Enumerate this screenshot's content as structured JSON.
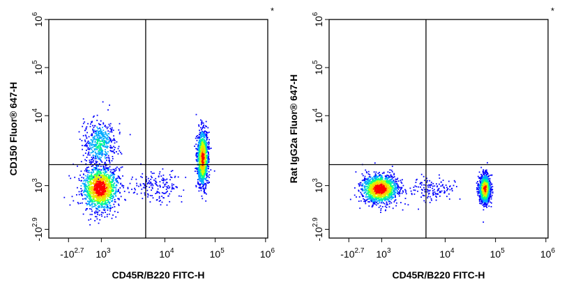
{
  "chart_data": [
    {
      "type": "scatter",
      "subtype": "flow-cytometry-density-plot",
      "xlabel": "CD45R/B220 FITC-H",
      "ylabel": "CD150 Fluor® 647-H",
      "marker": "*",
      "x_scale": "biexponential",
      "y_scale": "biexponential",
      "x_ticks": [
        {
          "base": "-10",
          "exp": "2.7",
          "value": -501
        },
        {
          "base": "10",
          "exp": "3",
          "value": 1000
        },
        {
          "base": "10",
          "exp": "4",
          "value": 10000
        },
        {
          "base": "10",
          "exp": "5",
          "value": 100000
        },
        {
          "base": "10",
          "exp": "6",
          "value": 1000000
        }
      ],
      "y_ticks": [
        {
          "base": "-10",
          "exp": "2.9",
          "value": -794
        },
        {
          "base": "10",
          "exp": "3",
          "value": 1000
        },
        {
          "base": "10",
          "exp": "4",
          "value": 10000
        },
        {
          "base": "10",
          "exp": "5",
          "value": 100000
        },
        {
          "base": "10",
          "exp": "6",
          "value": 1000000
        }
      ],
      "quadrant_gate": {
        "x": 5000,
        "y": 2000
      },
      "populations": [
        {
          "x_center": 600,
          "y_center": 650,
          "x_spread": 0.45,
          "y_spread": 0.55,
          "relative_density": 1.0
        },
        {
          "x_center": 600,
          "y_center": 4000,
          "x_spread": 0.4,
          "y_spread": 0.6,
          "relative_density": 0.35
        },
        {
          "x_center": 55000,
          "y_center": 2500,
          "x_spread": 0.14,
          "y_spread": 0.7,
          "relative_density": 0.9
        },
        {
          "x_center": 7000,
          "y_center": 700,
          "x_spread": 0.6,
          "y_spread": 0.4,
          "relative_density": 0.12
        }
      ],
      "density_colors": [
        "#0000ff",
        "#00aaff",
        "#00ff88",
        "#ccff00",
        "#ffcc00",
        "#ff0000"
      ]
    },
    {
      "type": "scatter",
      "subtype": "flow-cytometry-density-plot",
      "xlabel": "CD45R/B220 FITC-H",
      "ylabel": "Rat IgG2a Fluor® 647-H",
      "marker": "*",
      "x_scale": "biexponential",
      "y_scale": "biexponential",
      "x_ticks": [
        {
          "base": "-10",
          "exp": "2.7",
          "value": -501
        },
        {
          "base": "10",
          "exp": "3",
          "value": 1000
        },
        {
          "base": "10",
          "exp": "4",
          "value": 10000
        },
        {
          "base": "10",
          "exp": "5",
          "value": 100000
        },
        {
          "base": "10",
          "exp": "6",
          "value": 1000000
        }
      ],
      "y_ticks": [
        {
          "base": "-10",
          "exp": "2.9",
          "value": -794
        },
        {
          "base": "10",
          "exp": "3",
          "value": 1000
        },
        {
          "base": "10",
          "exp": "4",
          "value": 10000
        },
        {
          "base": "10",
          "exp": "5",
          "value": 100000
        },
        {
          "base": "10",
          "exp": "6",
          "value": 1000000
        }
      ],
      "quadrant_gate": {
        "x": 5000,
        "y": 2000
      },
      "populations": [
        {
          "x_center": 550,
          "y_center": 550,
          "x_spread": 0.45,
          "y_spread": 0.35,
          "relative_density": 1.0
        },
        {
          "x_center": 60000,
          "y_center": 550,
          "x_spread": 0.14,
          "y_spread": 0.35,
          "relative_density": 0.9
        },
        {
          "x_center": 6000,
          "y_center": 550,
          "x_spread": 0.6,
          "y_spread": 0.3,
          "relative_density": 0.1
        }
      ],
      "density_colors": [
        "#0000ff",
        "#00aaff",
        "#00ff88",
        "#ccff00",
        "#ffcc00",
        "#ff0000"
      ]
    }
  ]
}
